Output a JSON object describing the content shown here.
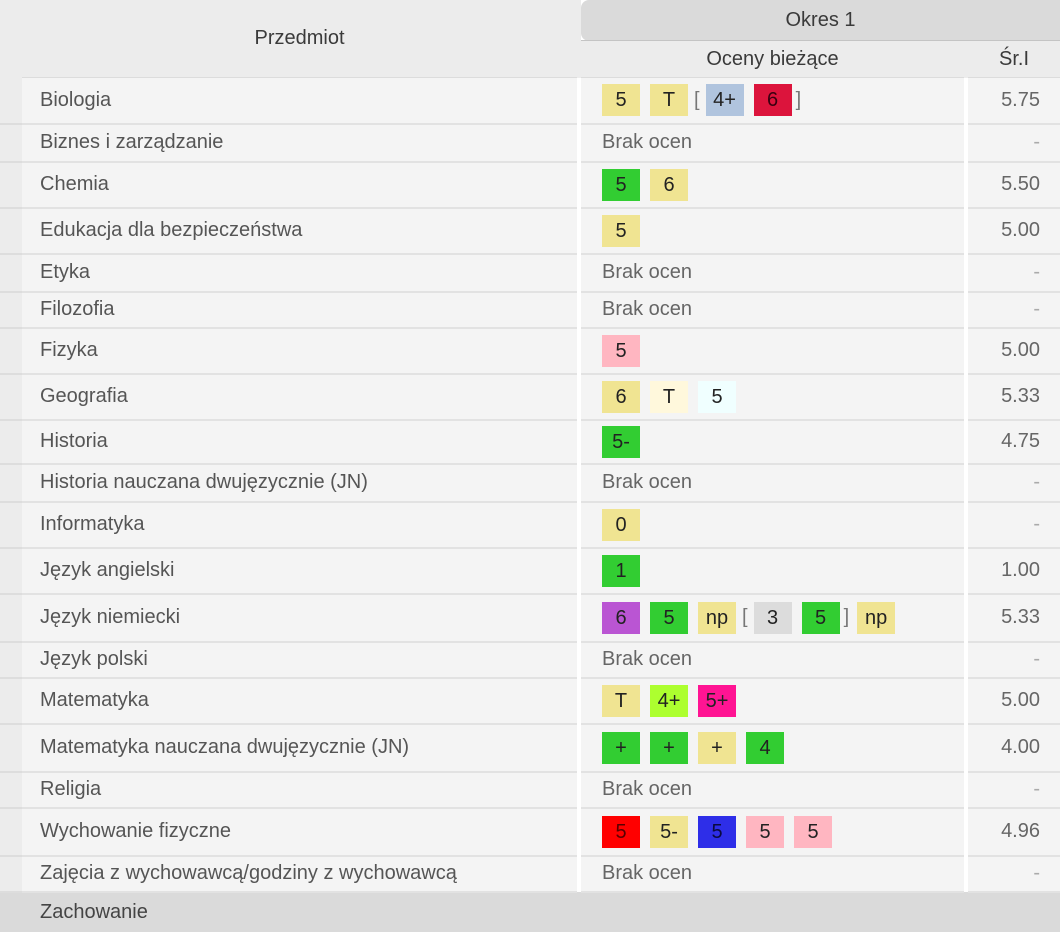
{
  "header": {
    "subject": "Przedmiot",
    "period": "Okres 1",
    "current": "Oceny bieżące",
    "average": "Śr.I"
  },
  "rows": [
    {
      "subject": "Biologia",
      "average": "5.75",
      "grades": [
        {
          "t": "5",
          "bg": "#f0e492",
          "fg": "#222"
        },
        {
          "t": "T",
          "bg": "#f0e492",
          "fg": "#222"
        },
        {
          "br": "["
        },
        {
          "t": "4+",
          "bg": "#b0c4de",
          "fg": "#222"
        },
        {
          "t": "6",
          "bg": "#dc143c",
          "fg": "#3a0010"
        },
        {
          "br": "]"
        }
      ]
    },
    {
      "subject": "Biznes i zarządzanie",
      "average": "-",
      "none": "Brak ocen",
      "grades": []
    },
    {
      "subject": "Chemia",
      "average": "5.50",
      "grades": [
        {
          "t": "5",
          "bg": "#32cd32",
          "fg": "#222"
        },
        {
          "t": "6",
          "bg": "#f0e492",
          "fg": "#222"
        }
      ]
    },
    {
      "subject": "Edukacja dla bezpieczeństwa",
      "average": "5.00",
      "grades": [
        {
          "t": "5",
          "bg": "#f0e492",
          "fg": "#222"
        }
      ]
    },
    {
      "subject": "Etyka",
      "average": "-",
      "none": "Brak ocen",
      "grades": []
    },
    {
      "subject": "Filozofia",
      "average": "-",
      "none": "Brak ocen",
      "grades": []
    },
    {
      "subject": "Fizyka",
      "average": "5.00",
      "grades": [
        {
          "t": "5",
          "bg": "#ffb6c1",
          "fg": "#222"
        }
      ]
    },
    {
      "subject": "Geografia",
      "average": "5.33",
      "grades": [
        {
          "t": "6",
          "bg": "#f0e492",
          "fg": "#222"
        },
        {
          "t": "T",
          "bg": "#fff8dc",
          "fg": "#222"
        },
        {
          "t": "5",
          "bg": "#f0ffff",
          "fg": "#222"
        }
      ]
    },
    {
      "subject": "Historia",
      "average": "4.75",
      "grades": [
        {
          "t": "5-",
          "bg": "#32cd32",
          "fg": "#222"
        }
      ]
    },
    {
      "subject": "Historia nauczana dwujęzycznie (JN)",
      "average": "-",
      "none": "Brak ocen",
      "grades": []
    },
    {
      "subject": "Informatyka",
      "average": "-",
      "grades": [
        {
          "t": "0",
          "bg": "#f0e492",
          "fg": "#222"
        }
      ]
    },
    {
      "subject": "Język angielski",
      "average": "1.00",
      "grades": [
        {
          "t": "1",
          "bg": "#32cd32",
          "fg": "#222"
        }
      ]
    },
    {
      "subject": "Język niemiecki",
      "average": "5.33",
      "grades": [
        {
          "t": "6",
          "bg": "#ba55d3",
          "fg": "#222"
        },
        {
          "t": "5",
          "bg": "#32cd32",
          "fg": "#222"
        },
        {
          "t": "np",
          "bg": "#f0e492",
          "fg": "#222"
        },
        {
          "br": "["
        },
        {
          "t": "3",
          "bg": "#dcdcdc",
          "fg": "#222"
        },
        {
          "t": "5",
          "bg": "#32cd32",
          "fg": "#222"
        },
        {
          "br": "]"
        },
        {
          "t": "np",
          "bg": "#f0e492",
          "fg": "#222"
        }
      ]
    },
    {
      "subject": "Język polski",
      "average": "-",
      "none": "Brak ocen",
      "grades": []
    },
    {
      "subject": "Matematyka",
      "average": "5.00",
      "grades": [
        {
          "t": "T",
          "bg": "#f0e492",
          "fg": "#222"
        },
        {
          "t": "4+",
          "bg": "#adff2f",
          "fg": "#222"
        },
        {
          "t": "5+",
          "bg": "#ff1493",
          "fg": "#222"
        }
      ]
    },
    {
      "subject": "Matematyka nauczana dwujęzycznie (JN)",
      "average": "4.00",
      "grades": [
        {
          "t": "+",
          "bg": "#32cd32",
          "fg": "#222"
        },
        {
          "t": "+",
          "bg": "#32cd32",
          "fg": "#222"
        },
        {
          "t": "+",
          "bg": "#f0e492",
          "fg": "#222"
        },
        {
          "t": "4",
          "bg": "#32cd32",
          "fg": "#222"
        }
      ]
    },
    {
      "subject": "Religia",
      "average": "-",
      "none": "Brak ocen",
      "grades": []
    },
    {
      "subject": "Wychowanie fizyczne",
      "average": "4.96",
      "grades": [
        {
          "t": "5",
          "bg": "#ff0000",
          "fg": "#5a0000"
        },
        {
          "t": "5-",
          "bg": "#f0e492",
          "fg": "#222"
        },
        {
          "t": "5",
          "bg": "#2e2ee8",
          "fg": "#0a0a40"
        },
        {
          "t": "5",
          "bg": "#ffb6c1",
          "fg": "#222"
        },
        {
          "t": "5",
          "bg": "#ffb6c1",
          "fg": "#222"
        }
      ]
    },
    {
      "subject": "Zajęcia z wychowawcą/godziny z wychowawcą",
      "average": "-",
      "none": "Brak ocen",
      "grades": []
    }
  ],
  "behavior": {
    "subject": "Zachowanie"
  }
}
